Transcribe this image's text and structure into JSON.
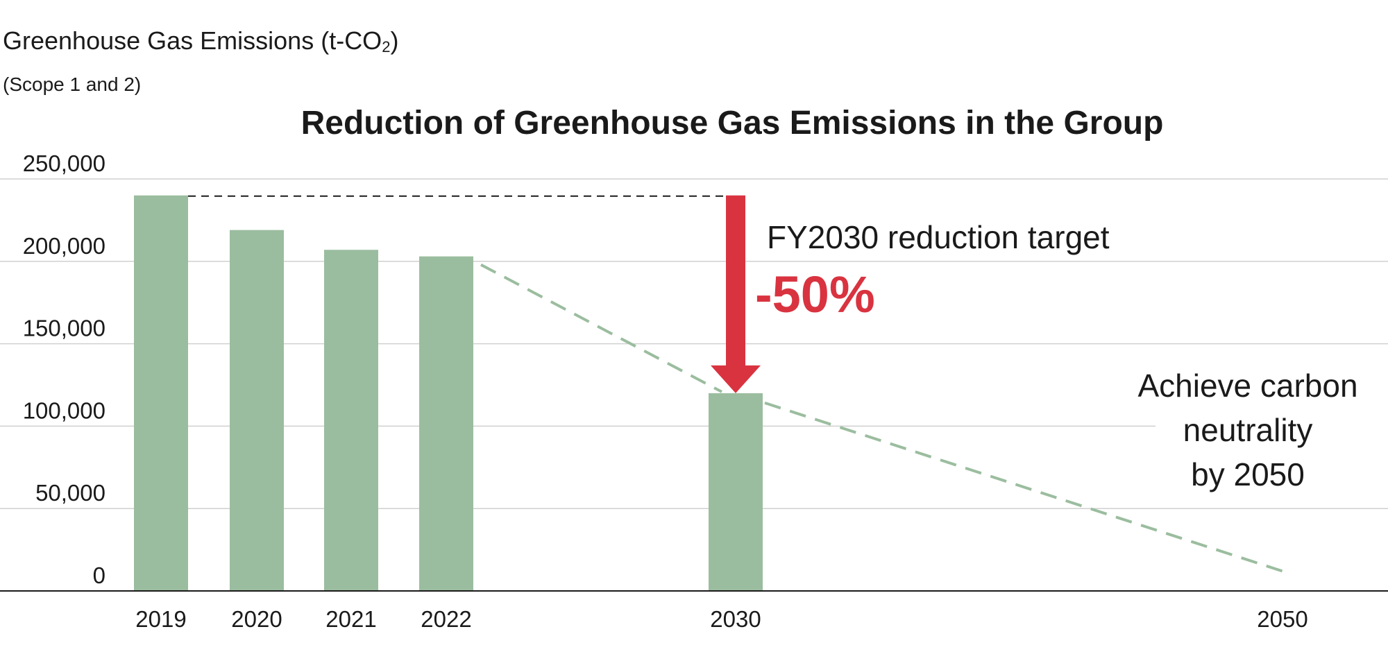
{
  "ylabel": {
    "main": "Greenhouse Gas Emissions (t-CO",
    "sub_script": "2",
    "close": ")",
    "scope": "(Scope 1 and 2)"
  },
  "chart_data": {
    "type": "bar",
    "title": "Reduction of Greenhouse Gas Emissions in the Group",
    "xlabel": "",
    "ylabel": "Greenhouse Gas Emissions (t-CO2) (Scope 1 and 2)",
    "ylim": [
      0,
      250000
    ],
    "yticks": [
      0,
      50000,
      100000,
      150000,
      200000,
      250000
    ],
    "ytick_labels": [
      "0",
      "50,000",
      "100,000",
      "150,000",
      "200,000",
      "250,000"
    ],
    "categories": [
      "2019",
      "2020",
      "2021",
      "2022",
      "2030",
      "2050"
    ],
    "values": [
      240000,
      219000,
      207000,
      203000,
      120000,
      null
    ],
    "trend_line": {
      "style": "dashed",
      "points": [
        [
          2022,
          203000
        ],
        [
          2030,
          120000
        ],
        [
          2050,
          12000
        ]
      ]
    },
    "baseline_reference": {
      "style": "dashed",
      "value": 240000,
      "from": "2019",
      "to": "2030"
    },
    "annotations": [
      {
        "text": "FY2030 reduction target",
        "target": "2030"
      },
      {
        "text": "-50%",
        "target": "2030"
      },
      {
        "text": [
          "Achieve carbon",
          "neutrality",
          "by 2050"
        ],
        "target": "2050"
      }
    ],
    "grid": true,
    "legend": "none"
  },
  "colors": {
    "bar": "#9bbd9f",
    "trend": "#9bbd9f",
    "arrow": "#d93340",
    "target_percent": "#d93340",
    "grid": "#d0d0d0",
    "axis": "#1a1a1a",
    "text": "#1a1a1a"
  }
}
